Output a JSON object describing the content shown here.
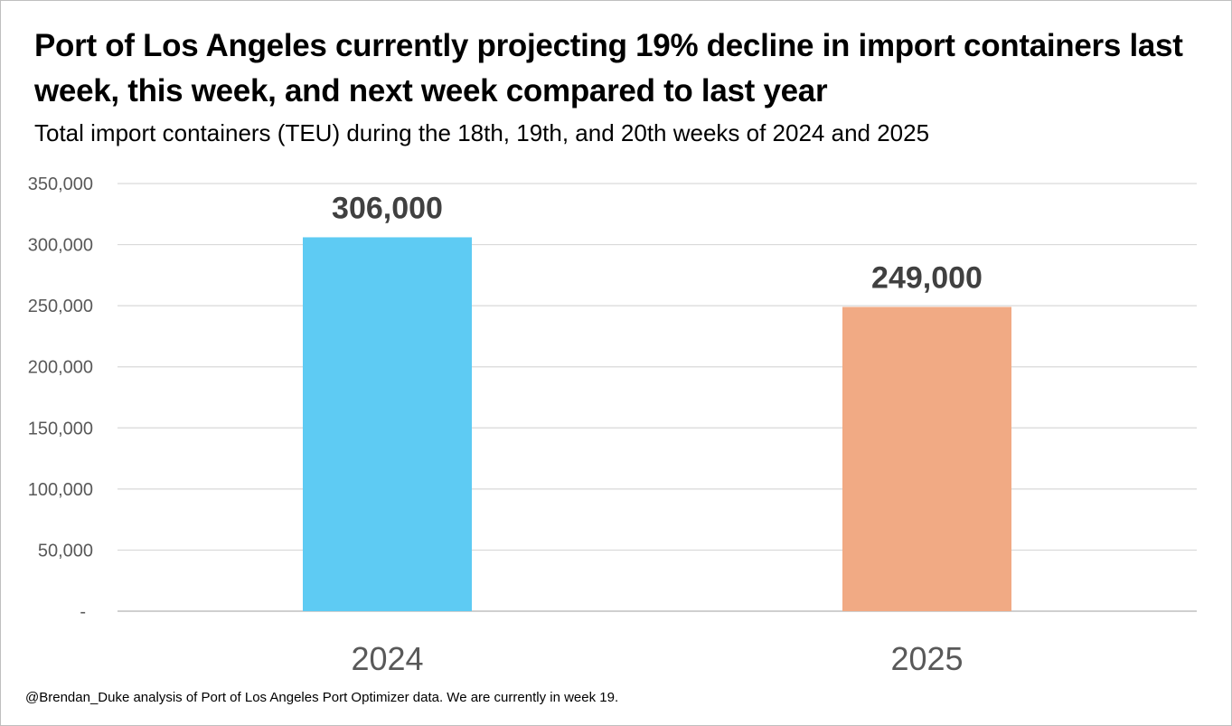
{
  "chart_data": {
    "type": "bar",
    "title": "Port of Los Angeles currently projecting 19% decline in import containers last week, this week, and next week compared to last year",
    "subtitle": "Total import containers (TEU) during the 18th, 19th, and 20th weeks of 2024 and 2025",
    "categories": [
      "2024",
      "2025"
    ],
    "values": [
      306000,
      249000
    ],
    "data_labels": [
      "306,000",
      "249,000"
    ],
    "bar_colors": [
      "#5ECBF3",
      "#F1AA84"
    ],
    "xlabel": "",
    "ylabel": "",
    "ylim": [
      0,
      350000
    ],
    "yticks": [
      0,
      50000,
      100000,
      150000,
      200000,
      250000,
      300000,
      350000
    ],
    "ytick_labels": [
      "-",
      "50,000",
      "100,000",
      "150,000",
      "200,000",
      "250,000",
      "300,000",
      "350,000"
    ],
    "grid": true,
    "legend": "none"
  },
  "footnote": "@Brendan_Duke analysis of Port of Los Angeles Port Optimizer data. We are currently in week 19."
}
